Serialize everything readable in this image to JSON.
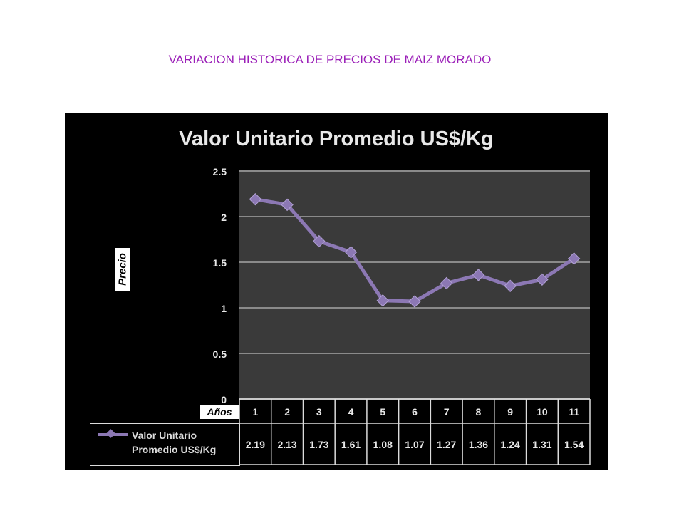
{
  "page": {
    "title": "VARIACION HISTORICA DE PRECIOS DE MAIZ MORADO"
  },
  "chart_data": {
    "type": "line",
    "title": "Valor Unitario Promedio US$/Kg",
    "ylabel": "Precio",
    "xlabel": "Años",
    "categories": [
      "1",
      "2",
      "3",
      "4",
      "5",
      "6",
      "7",
      "8",
      "9",
      "10",
      "11"
    ],
    "series": [
      {
        "name": "Valor Unitario Promedio US$/Kg",
        "values": [
          2.19,
          2.13,
          1.73,
          1.61,
          1.08,
          1.07,
          1.27,
          1.36,
          1.24,
          1.31,
          1.54
        ]
      }
    ],
    "value_labels": [
      "2.19",
      "2.13",
      "1.73",
      "1.61",
      "1.08",
      "1.07",
      "1.27",
      "1.36",
      "1.24",
      "1.31",
      "1.54"
    ],
    "ylim": [
      0,
      2.5
    ],
    "yticks": [
      "0",
      "0.5",
      "1",
      "1.5",
      "2",
      "2.5"
    ],
    "grid": true,
    "data_table": true,
    "colors": {
      "background": "#000000",
      "plot_area": "#3a3a3a",
      "gridline": "#8a8a8a",
      "line": "#8c78b4",
      "text": "#e8e8e8",
      "title_color": "#9b1fb8"
    }
  }
}
